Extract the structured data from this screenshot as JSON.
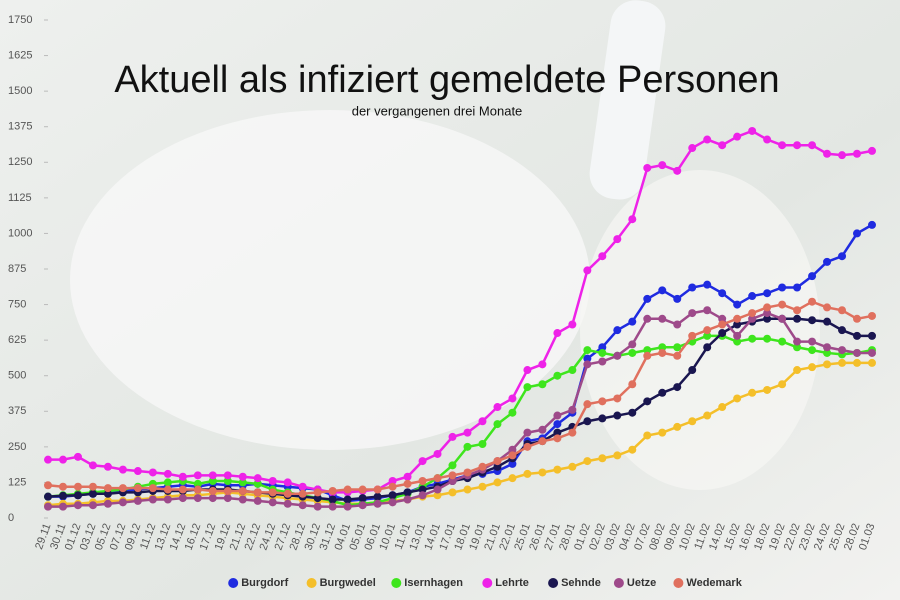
{
  "chart_data": {
    "type": "line",
    "title": "Aktuell als infiziert gemeldete Personen",
    "subtitle": "der vergangenen drei Monate",
    "categories": [
      "29.11",
      "30.11",
      "01.12",
      "03.12",
      "05.12",
      "07.12",
      "09.12",
      "11.12",
      "13.12",
      "14.12",
      "16.12",
      "17.12",
      "19.12",
      "21.12",
      "22.12",
      "24.12",
      "27.12",
      "28.12",
      "30.12",
      "31.12",
      "04.01",
      "05.01",
      "06.01",
      "10.01",
      "11.01",
      "13.01",
      "14.01",
      "17.01",
      "18.01",
      "19.01",
      "21.01",
      "22.01",
      "25.01",
      "26.01",
      "27.01",
      "28.01",
      "01.02",
      "02.02",
      "03.02",
      "04.02",
      "07.02",
      "08.02",
      "09.02",
      "10.02",
      "11.02",
      "14.02",
      "15.02",
      "16.02",
      "18.02",
      "19.02",
      "22.02",
      "23.02",
      "24.02",
      "25.02",
      "28.02",
      "01.03"
    ],
    "series": [
      {
        "name": "Burgdorf",
        "color": "#1f2be0",
        "values": [
          75,
          75,
          80,
          85,
          90,
          95,
          100,
          105,
          110,
          115,
          110,
          120,
          115,
          115,
          120,
          115,
          110,
          105,
          100,
          80,
          60,
          65,
          70,
          80,
          90,
          110,
          120,
          135,
          150,
          155,
          165,
          190,
          270,
          280,
          330,
          370,
          560,
          600,
          660,
          690,
          770,
          800,
          770,
          810,
          820,
          790,
          750,
          780,
          790,
          810,
          810,
          850,
          900,
          920,
          1000,
          1030
        ]
      },
      {
        "name": "Burgwedel",
        "color": "#f4bf2a",
        "values": [
          45,
          50,
          50,
          55,
          60,
          60,
          65,
          70,
          75,
          80,
          80,
          85,
          90,
          85,
          80,
          75,
          70,
          65,
          60,
          55,
          50,
          50,
          55,
          60,
          65,
          75,
          80,
          90,
          100,
          110,
          125,
          140,
          155,
          160,
          170,
          180,
          200,
          210,
          220,
          240,
          290,
          300,
          320,
          340,
          360,
          390,
          420,
          440,
          450,
          470,
          520,
          530,
          540,
          545,
          545,
          545
        ]
      },
      {
        "name": "Isernhagen",
        "color": "#3ee51d",
        "values": [
          75,
          80,
          85,
          90,
          95,
          100,
          110,
          120,
          125,
          130,
          120,
          130,
          130,
          125,
          120,
          100,
          90,
          80,
          70,
          60,
          45,
          50,
          55,
          70,
          85,
          110,
          140,
          185,
          250,
          260,
          330,
          370,
          460,
          470,
          500,
          520,
          590,
          580,
          570,
          580,
          590,
          600,
          600,
          620,
          640,
          640,
          620,
          630,
          630,
          620,
          600,
          590,
          580,
          575,
          580,
          590
        ]
      },
      {
        "name": "Lehrte",
        "color": "#ee22e8",
        "values": [
          205,
          205,
          215,
          185,
          180,
          170,
          165,
          160,
          155,
          145,
          150,
          150,
          150,
          145,
          140,
          130,
          125,
          110,
          100,
          90,
          90,
          95,
          100,
          130,
          145,
          200,
          225,
          285,
          300,
          340,
          390,
          420,
          520,
          540,
          650,
          680,
          870,
          920,
          980,
          1050,
          1230,
          1240,
          1220,
          1300,
          1330,
          1310,
          1340,
          1360,
          1330,
          1310,
          1310,
          1310,
          1280,
          1275,
          1280,
          1290
        ]
      },
      {
        "name": "Sehnde",
        "color": "#1a1650",
        "values": [
          75,
          78,
          80,
          85,
          85,
          90,
          90,
          95,
          95,
          95,
          100,
          100,
          100,
          95,
          90,
          85,
          80,
          75,
          70,
          65,
          65,
          70,
          75,
          80,
          90,
          100,
          110,
          130,
          140,
          160,
          180,
          210,
          260,
          270,
          300,
          320,
          340,
          350,
          360,
          370,
          410,
          440,
          460,
          520,
          600,
          650,
          680,
          690,
          700,
          700,
          700,
          695,
          690,
          660,
          640,
          640
        ]
      },
      {
        "name": "Uetze",
        "color": "#9e4a8a",
        "values": [
          40,
          40,
          45,
          45,
          50,
          55,
          60,
          65,
          65,
          70,
          70,
          70,
          70,
          65,
          60,
          55,
          50,
          45,
          40,
          40,
          40,
          45,
          50,
          55,
          65,
          80,
          100,
          130,
          150,
          170,
          200,
          240,
          300,
          310,
          360,
          380,
          540,
          550,
          570,
          610,
          700,
          700,
          680,
          720,
          730,
          700,
          640,
          700,
          720,
          700,
          620,
          620,
          600,
          590,
          580,
          580
        ]
      },
      {
        "name": "Wedemark",
        "color": "#e0705e",
        "values": [
          115,
          110,
          110,
          110,
          105,
          105,
          105,
          105,
          100,
          100,
          100,
          95,
          95,
          95,
          90,
          90,
          85,
          85,
          90,
          95,
          100,
          100,
          100,
          110,
          120,
          130,
          140,
          150,
          160,
          180,
          200,
          220,
          250,
          270,
          280,
          300,
          400,
          410,
          420,
          470,
          570,
          580,
          570,
          640,
          660,
          680,
          700,
          720,
          740,
          750,
          730,
          760,
          740,
          730,
          700,
          710
        ]
      }
    ],
    "ylim": [
      0,
      1750
    ],
    "yticks": [
      0,
      125,
      250,
      375,
      500,
      625,
      750,
      875,
      1000,
      1125,
      1250,
      1375,
      1500,
      1625,
      1750
    ],
    "grid": false
  }
}
